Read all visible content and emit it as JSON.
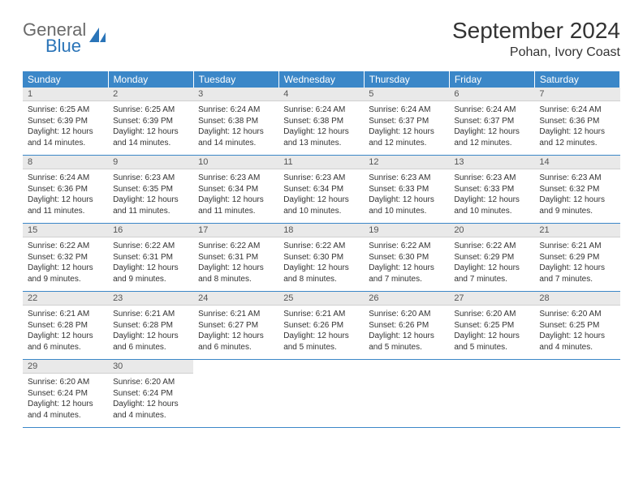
{
  "brand": {
    "general": "General",
    "blue": "Blue"
  },
  "title": "September 2024",
  "location": "Pohan, Ivory Coast",
  "colors": {
    "header_bg": "#3b87c8",
    "header_text": "#ffffff",
    "daynum_bg": "#e9e9e9",
    "row_border": "#3b87c8",
    "logo_gray": "#6a6a6a",
    "logo_blue": "#2a74b8"
  },
  "weekdays": [
    "Sunday",
    "Monday",
    "Tuesday",
    "Wednesday",
    "Thursday",
    "Friday",
    "Saturday"
  ],
  "start_offset": 0,
  "days": [
    {
      "n": 1,
      "sr": "6:25 AM",
      "ss": "6:39 PM",
      "dl": "12 hours and 14 minutes."
    },
    {
      "n": 2,
      "sr": "6:25 AM",
      "ss": "6:39 PM",
      "dl": "12 hours and 14 minutes."
    },
    {
      "n": 3,
      "sr": "6:24 AM",
      "ss": "6:38 PM",
      "dl": "12 hours and 14 minutes."
    },
    {
      "n": 4,
      "sr": "6:24 AM",
      "ss": "6:38 PM",
      "dl": "12 hours and 13 minutes."
    },
    {
      "n": 5,
      "sr": "6:24 AM",
      "ss": "6:37 PM",
      "dl": "12 hours and 12 minutes."
    },
    {
      "n": 6,
      "sr": "6:24 AM",
      "ss": "6:37 PM",
      "dl": "12 hours and 12 minutes."
    },
    {
      "n": 7,
      "sr": "6:24 AM",
      "ss": "6:36 PM",
      "dl": "12 hours and 12 minutes."
    },
    {
      "n": 8,
      "sr": "6:24 AM",
      "ss": "6:36 PM",
      "dl": "12 hours and 11 minutes."
    },
    {
      "n": 9,
      "sr": "6:23 AM",
      "ss": "6:35 PM",
      "dl": "12 hours and 11 minutes."
    },
    {
      "n": 10,
      "sr": "6:23 AM",
      "ss": "6:34 PM",
      "dl": "12 hours and 11 minutes."
    },
    {
      "n": 11,
      "sr": "6:23 AM",
      "ss": "6:34 PM",
      "dl": "12 hours and 10 minutes."
    },
    {
      "n": 12,
      "sr": "6:23 AM",
      "ss": "6:33 PM",
      "dl": "12 hours and 10 minutes."
    },
    {
      "n": 13,
      "sr": "6:23 AM",
      "ss": "6:33 PM",
      "dl": "12 hours and 10 minutes."
    },
    {
      "n": 14,
      "sr": "6:23 AM",
      "ss": "6:32 PM",
      "dl": "12 hours and 9 minutes."
    },
    {
      "n": 15,
      "sr": "6:22 AM",
      "ss": "6:32 PM",
      "dl": "12 hours and 9 minutes."
    },
    {
      "n": 16,
      "sr": "6:22 AM",
      "ss": "6:31 PM",
      "dl": "12 hours and 9 minutes."
    },
    {
      "n": 17,
      "sr": "6:22 AM",
      "ss": "6:31 PM",
      "dl": "12 hours and 8 minutes."
    },
    {
      "n": 18,
      "sr": "6:22 AM",
      "ss": "6:30 PM",
      "dl": "12 hours and 8 minutes."
    },
    {
      "n": 19,
      "sr": "6:22 AM",
      "ss": "6:30 PM",
      "dl": "12 hours and 7 minutes."
    },
    {
      "n": 20,
      "sr": "6:22 AM",
      "ss": "6:29 PM",
      "dl": "12 hours and 7 minutes."
    },
    {
      "n": 21,
      "sr": "6:21 AM",
      "ss": "6:29 PM",
      "dl": "12 hours and 7 minutes."
    },
    {
      "n": 22,
      "sr": "6:21 AM",
      "ss": "6:28 PM",
      "dl": "12 hours and 6 minutes."
    },
    {
      "n": 23,
      "sr": "6:21 AM",
      "ss": "6:28 PM",
      "dl": "12 hours and 6 minutes."
    },
    {
      "n": 24,
      "sr": "6:21 AM",
      "ss": "6:27 PM",
      "dl": "12 hours and 6 minutes."
    },
    {
      "n": 25,
      "sr": "6:21 AM",
      "ss": "6:26 PM",
      "dl": "12 hours and 5 minutes."
    },
    {
      "n": 26,
      "sr": "6:20 AM",
      "ss": "6:26 PM",
      "dl": "12 hours and 5 minutes."
    },
    {
      "n": 27,
      "sr": "6:20 AM",
      "ss": "6:25 PM",
      "dl": "12 hours and 5 minutes."
    },
    {
      "n": 28,
      "sr": "6:20 AM",
      "ss": "6:25 PM",
      "dl": "12 hours and 4 minutes."
    },
    {
      "n": 29,
      "sr": "6:20 AM",
      "ss": "6:24 PM",
      "dl": "12 hours and 4 minutes."
    },
    {
      "n": 30,
      "sr": "6:20 AM",
      "ss": "6:24 PM",
      "dl": "12 hours and 4 minutes."
    }
  ],
  "labels": {
    "sunrise": "Sunrise:",
    "sunset": "Sunset:",
    "daylight": "Daylight:"
  }
}
